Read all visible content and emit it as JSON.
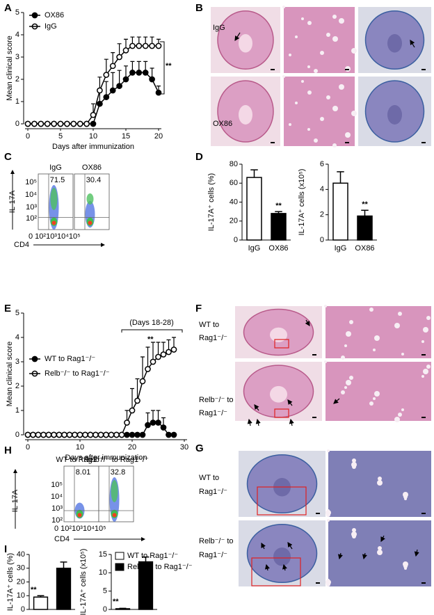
{
  "panel_labels": [
    "A",
    "B",
    "C",
    "D",
    "E",
    "F",
    "G",
    "H",
    "I"
  ],
  "chart_data": [
    {
      "type": "line",
      "panel": "A",
      "ylabel": "Mean clinical score",
      "xlabel": "Days after immunization",
      "x": [
        0,
        1,
        2,
        3,
        4,
        5,
        6,
        7,
        8,
        9,
        10,
        11,
        12,
        13,
        14,
        15,
        16,
        17,
        18,
        19,
        20
      ],
      "xlim": [
        0,
        20
      ],
      "xticks": [
        0,
        5,
        10,
        15,
        20
      ],
      "ylim": [
        0,
        5
      ],
      "yticks": [
        0,
        1,
        2,
        3,
        4,
        5
      ],
      "legend": "upper left",
      "annotation": "**",
      "series": [
        {
          "name": "OX86",
          "color": "#000000",
          "marker": "filled",
          "values": [
            0,
            0,
            0,
            0,
            0,
            0,
            0,
            0,
            0,
            0,
            0,
            0.9,
            1.2,
            1.5,
            1.7,
            2.0,
            2.3,
            2.3,
            2.3,
            2.0,
            1.4
          ],
          "errors": [
            0,
            0,
            0,
            0,
            0,
            0,
            0,
            0,
            0,
            0,
            0,
            0.6,
            0.7,
            0.8,
            0.7,
            0.6,
            0.5,
            0.5,
            0.5,
            0.5,
            0.3
          ]
        },
        {
          "name": "IgG",
          "color": "#000000",
          "marker": "open",
          "values": [
            0,
            0,
            0,
            0,
            0,
            0,
            0,
            0,
            0,
            0,
            0.4,
            1.5,
            2.2,
            2.6,
            3.0,
            3.3,
            3.5,
            3.5,
            3.5,
            3.5,
            3.5
          ],
          "errors": [
            0,
            0,
            0,
            0,
            0,
            0,
            0,
            0,
            0,
            0,
            0.5,
            0.6,
            0.7,
            0.6,
            0.6,
            0.5,
            0.4,
            0.4,
            0.4,
            0.4,
            0.3
          ]
        }
      ]
    },
    {
      "type": "bar",
      "panel": "D",
      "ylabel": "IL-17A⁺ cells (%)",
      "categories": [
        "IgG",
        "OX86"
      ],
      "values": [
        66,
        28
      ],
      "errors": [
        8,
        2
      ],
      "colors": [
        "#ffffff",
        "#000000"
      ],
      "ylim": [
        0,
        80
      ],
      "yticks": [
        0,
        20,
        40,
        60,
        80
      ],
      "annotation": "**"
    },
    {
      "type": "bar",
      "panel": "D",
      "ylabel": "IL-17A⁺ cells (x10⁵)",
      "categories": [
        "IgG",
        "OX86"
      ],
      "values": [
        4.5,
        1.9
      ],
      "errors": [
        0.9,
        0.45
      ],
      "colors": [
        "#ffffff",
        "#000000"
      ],
      "ylim": [
        0,
        6
      ],
      "yticks": [
        0,
        2,
        4,
        6
      ],
      "annotation": "**"
    },
    {
      "type": "line",
      "panel": "E",
      "ylabel": "Mean clinical score",
      "xlabel": "Days after immunization",
      "x": [
        0,
        1,
        2,
        3,
        4,
        5,
        6,
        7,
        8,
        9,
        10,
        11,
        12,
        13,
        14,
        15,
        16,
        17,
        18,
        19,
        20,
        21,
        22,
        23,
        24,
        25,
        26,
        27,
        28
      ],
      "xlim": [
        0,
        30
      ],
      "xticks": [
        0,
        10,
        20,
        30
      ],
      "ylim": [
        0,
        5
      ],
      "yticks": [
        0,
        1,
        2,
        3,
        4,
        5
      ],
      "legend": "center left",
      "annotation": "**",
      "bracket_label": "(Days 18-28)",
      "series": [
        {
          "name": "WT to Rag1⁻/⁻",
          "color": "#000000",
          "marker": "filled",
          "values": [
            0,
            0,
            0,
            0,
            0,
            0,
            0,
            0,
            0,
            0,
            0,
            0,
            0,
            0,
            0,
            0,
            0,
            0,
            0,
            0,
            0,
            0,
            0,
            0.4,
            0.5,
            0.5,
            0.3,
            0,
            0
          ],
          "errors": [
            0,
            0,
            0,
            0,
            0,
            0,
            0,
            0,
            0,
            0,
            0,
            0,
            0,
            0,
            0,
            0,
            0,
            0,
            0,
            0,
            0,
            0,
            0,
            0.5,
            0.5,
            0.5,
            0.4,
            0,
            0
          ]
        },
        {
          "name": "Relb⁻/⁻ to Rag1⁻/⁻",
          "color": "#000000",
          "marker": "open",
          "values": [
            0,
            0,
            0,
            0,
            0,
            0,
            0,
            0,
            0,
            0,
            0,
            0,
            0,
            0,
            0,
            0,
            0,
            0,
            0,
            0.5,
            1.0,
            1.4,
            2.2,
            2.7,
            3.0,
            3.2,
            3.3,
            3.4,
            3.5
          ],
          "errors": [
            0,
            0,
            0,
            0,
            0,
            0,
            0,
            0,
            0,
            0,
            0,
            0,
            0,
            0,
            0,
            0,
            0,
            0,
            0,
            0.5,
            0.9,
            0.9,
            1.0,
            0.9,
            0.8,
            0.6,
            0.5,
            0.5,
            0.5
          ]
        }
      ]
    },
    {
      "type": "bar",
      "panel": "I",
      "ylabel": "IL-17A⁺ cells (%)",
      "series": [
        {
          "color": "#ffffff",
          "values": [
            9
          ],
          "errors": [
            1
          ]
        },
        {
          "color": "#000000",
          "values": [
            30
          ],
          "errors": [
            4.5
          ]
        }
      ],
      "ylim": [
        0,
        40
      ],
      "yticks": [
        0,
        10,
        20,
        30,
        40
      ],
      "annotation": "**"
    },
    {
      "type": "bar",
      "panel": "I",
      "ylabel": "IL-17A⁺ cells (x10⁵)",
      "legend": "upper left",
      "series": [
        {
          "name": "WT to Rag1⁻/⁻",
          "color": "#ffffff",
          "values": [
            0.2
          ],
          "errors": [
            0.1
          ]
        },
        {
          "name": "Relb⁻/⁻ to Rag1⁻/⁻",
          "color": "#000000",
          "values": [
            13
          ],
          "errors": [
            1.3
          ]
        }
      ],
      "ylim": [
        0,
        15
      ],
      "yticks": [
        0,
        5,
        10,
        15
      ],
      "annotation": "**"
    }
  ],
  "flow": [
    {
      "y_label": "IL-17A",
      "x_label": "CD4",
      "y_ticks": [
        "10⁵",
        "10⁴",
        "10³",
        "10²"
      ],
      "x_ticks": "0 10²10³10⁴10⁵",
      "plots": [
        {
          "title": "IgG",
          "gate": "71.5"
        },
        {
          "title": "OX86",
          "gate": "30.4"
        }
      ]
    },
    {
      "y_label": "IL-17A",
      "x_label": "CD4",
      "y_ticks": [
        "10⁵",
        "10⁴",
        "10³",
        "10²"
      ],
      "x_ticks": "0 10²10³10⁴10⁵",
      "plots": [
        {
          "title": "WT to Rag1⁻/⁻",
          "gate": "8.01"
        },
        {
          "title": "Relb⁻/⁻ to Rag1⁻/⁻",
          "gate": "32.8"
        }
      ]
    }
  ],
  "histology": {
    "B": {
      "rows": [
        [
          "IgG"
        ],
        [
          "OX86"
        ]
      ]
    },
    "F": {
      "rows": [
        [
          "WT to",
          "Rag1⁻/⁻"
        ],
        [
          "Relb⁻/⁻ to",
          "Rag1⁻/⁻"
        ]
      ]
    },
    "G": {
      "rows": [
        [
          "WT to",
          "Rag1⁻/⁻"
        ],
        [
          "Relb⁻/⁻ to",
          "Rag1⁻/⁻"
        ]
      ]
    }
  }
}
